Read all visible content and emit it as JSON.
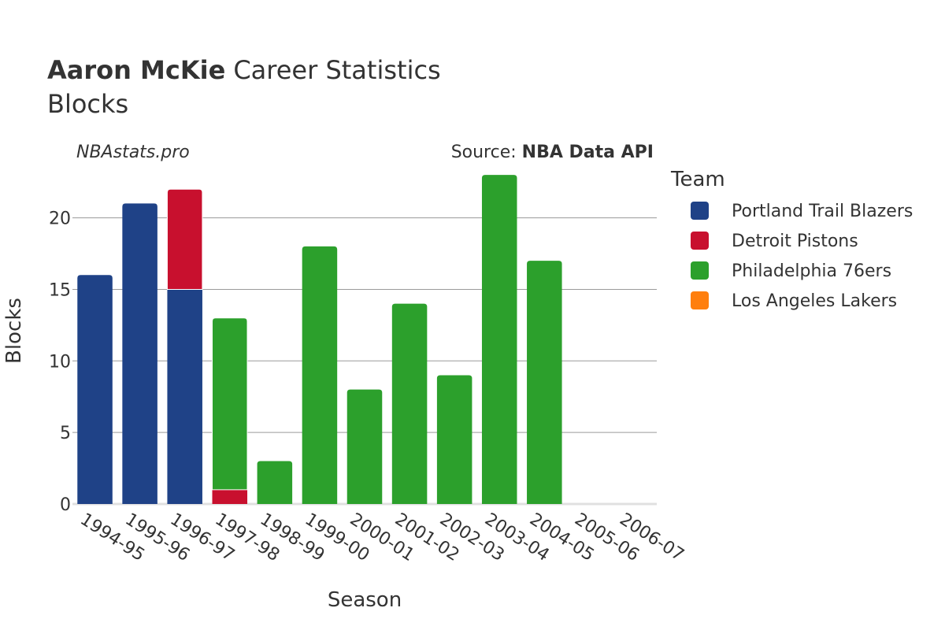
{
  "chart_data": {
    "type": "bar",
    "stacked": true,
    "title_bold": "Aaron McKie",
    "title_rest": "Career Statistics",
    "subtitle": "Blocks",
    "credit_left": "NBAstats.pro",
    "source_prefix": "Source: ",
    "source_name": "NBA Data API",
    "xlabel": "Season",
    "ylabel": "Blocks",
    "ylim": [
      0,
      23.5
    ],
    "yticks": [
      0,
      5,
      10,
      15,
      20
    ],
    "grid": true,
    "legend_title": "Team",
    "legend_position": "right",
    "categories": [
      "1994-95",
      "1995-96",
      "1996-97",
      "1997-98",
      "1998-99",
      "1999-00",
      "2000-01",
      "2001-02",
      "2002-03",
      "2003-04",
      "2004-05",
      "2005-06",
      "2006-07"
    ],
    "series": [
      {
        "name": "Portland Trail Blazers",
        "color": "#1f4287",
        "values": [
          16,
          21,
          15,
          0,
          0,
          0,
          0,
          0,
          0,
          0,
          0,
          0,
          0
        ]
      },
      {
        "name": "Detroit Pistons",
        "color": "#c8102e",
        "values": [
          0,
          0,
          7,
          1,
          0,
          0,
          0,
          0,
          0,
          0,
          0,
          0,
          0
        ]
      },
      {
        "name": "Philadelphia 76ers",
        "color": "#2ca02c",
        "values": [
          0,
          0,
          0,
          12,
          3,
          18,
          8,
          14,
          9,
          23,
          17,
          0,
          0
        ]
      },
      {
        "name": "Los Angeles Lakers",
        "color": "#ff7f0e",
        "values": [
          0,
          0,
          0,
          0,
          0,
          0,
          0,
          0,
          0,
          0,
          0,
          0,
          0
        ]
      }
    ]
  }
}
